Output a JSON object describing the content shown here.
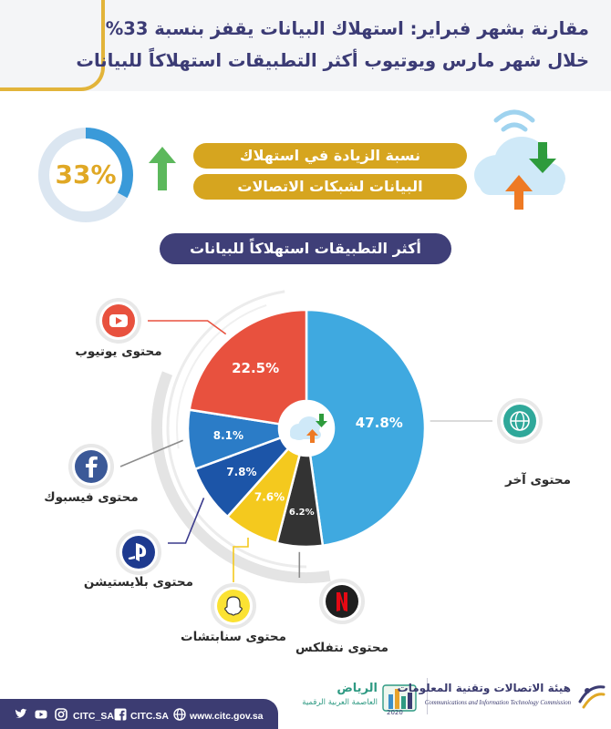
{
  "header": {
    "title_line1": "مقارنة بشهر فبراير: استهلاك البيانات يقفز بنسبة 33%",
    "title_line2": "خلال شهر مارس ويوتيوب أكثر التطبيقات استهلاكاً للبيانات"
  },
  "increase": {
    "percent": "33%",
    "percent_value": 0.33,
    "line1": "نسبة الزيادة في استهلاك",
    "line2": "البيانات لشبكات الاتصالات",
    "colors": {
      "accent": "#d6a51f",
      "ring": "#3a9ad9",
      "arrow": "#5cb85c"
    }
  },
  "subtitle": "أكثر التطبيقات استهلاكاً للبيانات",
  "chart_data": {
    "type": "pie",
    "slices": [
      {
        "name": "محتوى آخر",
        "value": 47.8,
        "label": "47.8%",
        "color": "#3fa9e0",
        "icon": "globe-icon"
      },
      {
        "name": "محتوى نتفلكس",
        "value": 6.2,
        "label": "6.2%",
        "color": "#333333",
        "icon": "netflix-icon"
      },
      {
        "name": "محتوى سنابتشات",
        "value": 7.6,
        "label": "7.6%",
        "color": "#f4c91e",
        "icon": "snapchat-icon"
      },
      {
        "name": "محتوى بلايستيشن",
        "value": 7.8,
        "label": "7.8%",
        "color": "#1c55a8",
        "icon": "playstation-icon"
      },
      {
        "name": "محتوى فيسبوك",
        "value": 8.1,
        "label": "8.1%",
        "color": "#2b7cc7",
        "icon": "facebook-icon"
      },
      {
        "name": "محتوى يوتيوب",
        "value": 22.5,
        "label": "22.5%",
        "color": "#e8513e",
        "icon": "youtube-icon"
      }
    ]
  },
  "footer": {
    "website": "www.citc.gov.sa",
    "handle_fb": "CITC.SA",
    "handle_social": "CITC_SA",
    "riyadh_title": "الرياض",
    "riyadh_sub": "العاصمة العربية الرقمية",
    "riyadh_year": "2020",
    "citc_ar": "هيئة الاتصالات وتقنية المعلومات",
    "citc_en": "Communications and Information Technology Commission"
  }
}
